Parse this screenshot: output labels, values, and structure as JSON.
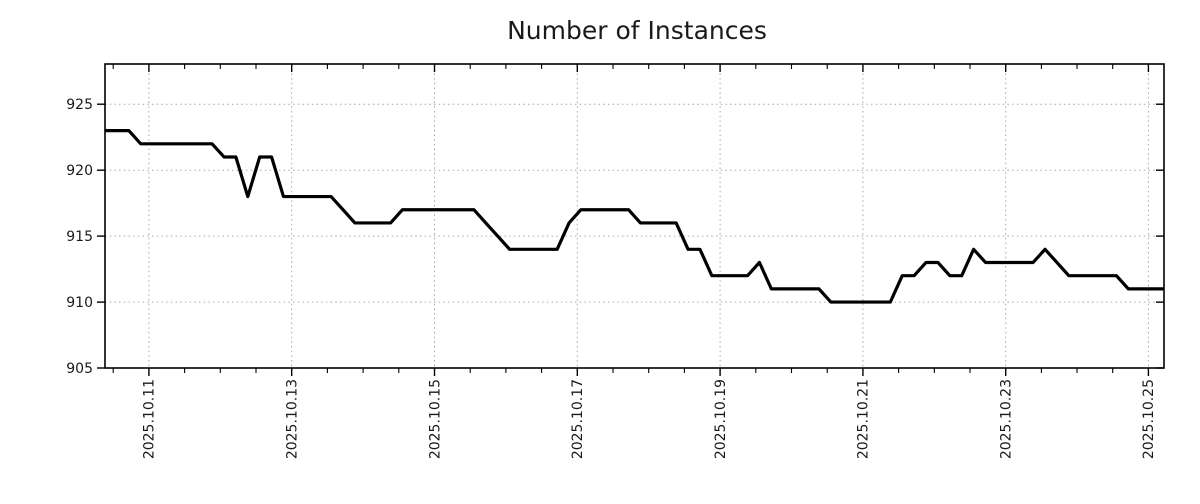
{
  "chart_data": {
    "type": "line",
    "title": "Number of Instances",
    "xlabel": "",
    "ylabel": "",
    "grid": "dotted",
    "legend": "none",
    "line_color": "#000000",
    "grid_color": "#a6a6a6",
    "text_color": "#1a1a1a",
    "y_ticks": [
      905,
      910,
      915,
      920,
      925
    ],
    "ylim": [
      905,
      928.05
    ],
    "x_tick_labels": [
      "2025.10.11",
      "2025.10.13",
      "2025.10.15",
      "2025.10.17",
      "2025.10.19",
      "2025.10.21",
      "2025.10.23",
      "2025.10.25"
    ],
    "x_tick_days": [
      0,
      2,
      4,
      6,
      8,
      10,
      12,
      14
    ],
    "x_minor_step_days": 0.5,
    "xlim_days": [
      -0.6154,
      14.2179
    ],
    "x_start_day": -0.6154,
    "sample_interval_days": 0.1666667,
    "n_points": 90,
    "values": [
      923,
      923,
      923,
      922,
      922,
      922,
      922,
      922,
      922,
      922,
      921,
      921,
      918,
      921,
      921,
      918,
      918,
      918,
      918,
      918,
      917,
      916,
      916,
      916,
      916,
      917,
      917,
      917,
      917,
      917,
      917,
      917,
      916,
      915,
      914,
      914,
      914,
      914,
      914,
      916,
      917,
      917,
      917,
      917,
      917,
      916,
      916,
      916,
      916,
      914,
      914,
      912,
      912,
      912,
      912,
      913,
      911,
      911,
      911,
      911,
      911,
      910,
      910,
      910,
      910,
      910,
      910,
      912,
      912,
      913,
      913,
      912,
      912,
      914,
      913,
      913,
      913,
      913,
      913,
      914,
      913,
      912,
      912,
      912,
      912,
      912,
      911,
      911,
      911,
      911
    ]
  }
}
